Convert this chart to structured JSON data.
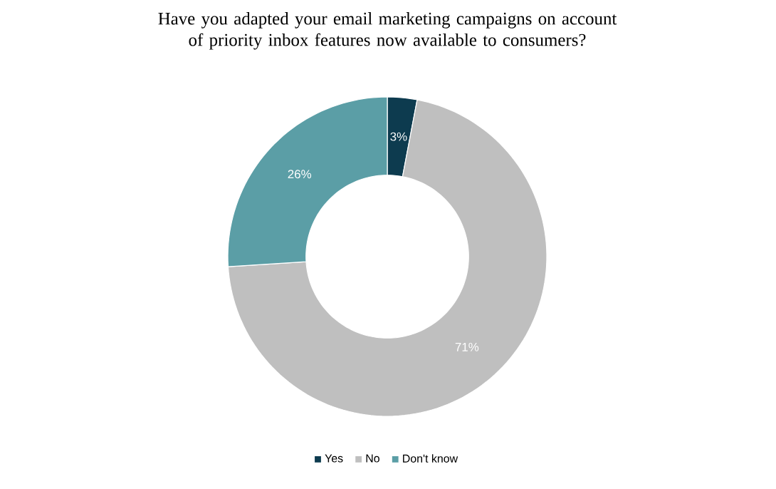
{
  "chart_data": {
    "type": "donut",
    "title": "Have you adapted your email marketing campaigns on account of priority inbox features now available to consumers?",
    "categories": [
      "Yes",
      "No",
      "Don't know"
    ],
    "values": [
      3,
      71,
      26
    ],
    "value_labels": [
      "3%",
      "71%",
      "26%"
    ],
    "colors": [
      "#0d3b4f",
      "#bfbfbf",
      "#5b9ea6"
    ],
    "legend": "bottom"
  }
}
